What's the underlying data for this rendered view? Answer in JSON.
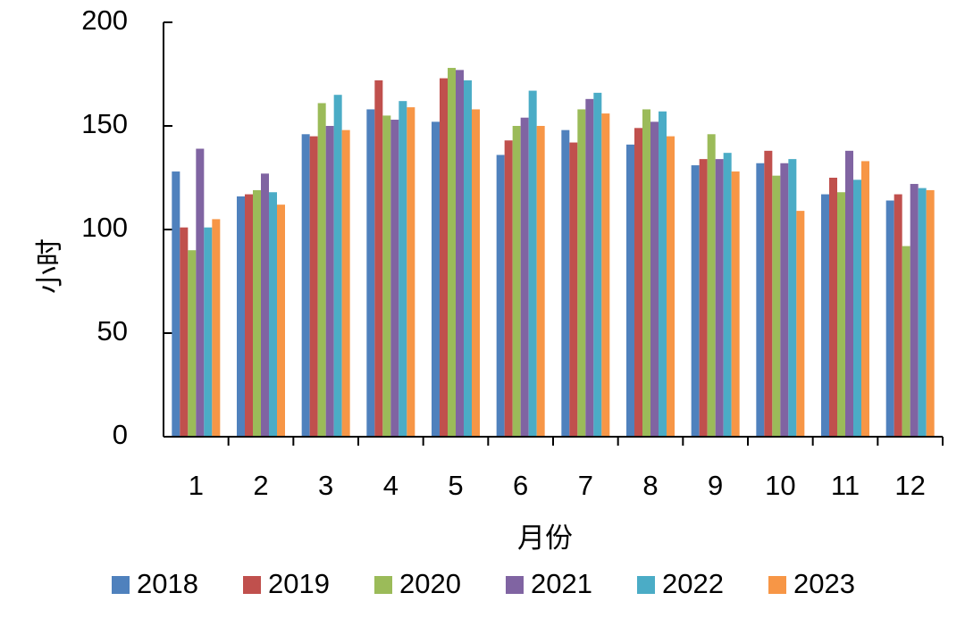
{
  "chart_data": {
    "type": "bar",
    "x_label": "月份",
    "y_label": "小时",
    "categories": [
      "1",
      "2",
      "3",
      "4",
      "5",
      "6",
      "7",
      "8",
      "9",
      "10",
      "11",
      "12"
    ],
    "series": [
      {
        "name": "2018",
        "color": "#4f81bd",
        "values": [
          128,
          116,
          146,
          158,
          152,
          136,
          148,
          141,
          131,
          132,
          117,
          114
        ]
      },
      {
        "name": "2019",
        "color": "#c0504d",
        "values": [
          101,
          117,
          145,
          172,
          173,
          143,
          142,
          149,
          134,
          138,
          125,
          117
        ]
      },
      {
        "name": "2020",
        "color": "#9bbb59",
        "values": [
          90,
          119,
          161,
          155,
          178,
          150,
          158,
          158,
          146,
          126,
          118,
          92
        ]
      },
      {
        "name": "2021",
        "color": "#8064a2",
        "values": [
          139,
          127,
          150,
          153,
          177,
          154,
          163,
          152,
          134,
          132,
          138,
          122
        ]
      },
      {
        "name": "2022",
        "color": "#4bacc6",
        "values": [
          101,
          118,
          165,
          162,
          172,
          167,
          166,
          157,
          137,
          134,
          124,
          120
        ]
      },
      {
        "name": "2023",
        "color": "#f79646",
        "values": [
          105,
          112,
          148,
          159,
          158,
          150,
          156,
          145,
          128,
          109,
          133,
          119
        ]
      }
    ],
    "ylim": [
      0,
      200
    ],
    "yticks": [
      0,
      50,
      100,
      150,
      200
    ],
    "grid": false,
    "legend": "bottom"
  }
}
